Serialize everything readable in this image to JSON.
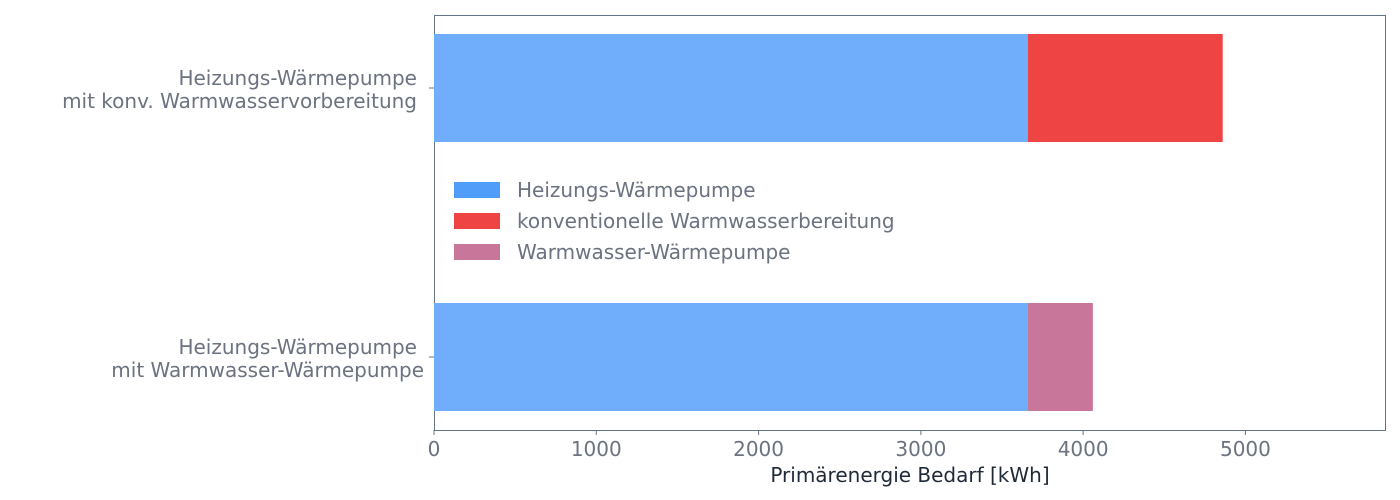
{
  "chart_data": {
    "type": "bar",
    "orientation": "horizontal",
    "stacked": true,
    "categories": [
      [
        "Heizungs-Wärmepumpe",
        "mit konv. Warmwasservorbereitung"
      ],
      [
        "Heizungs-Wärmepumpe",
        "mit Warmwasser-Wärmepumpe"
      ]
    ],
    "series": [
      {
        "name": "Heizungs-Wärmepumpe",
        "color": "#70aefc",
        "legend_color": "#4f9cf9",
        "values": [
          3660,
          3660
        ]
      },
      {
        "name": "konventionelle Warmwasserbereitung",
        "color": "#ef4444",
        "legend_color": "#ef4444",
        "values": [
          1200,
          0
        ]
      },
      {
        "name": "Warmwasser-Wärmepumpe",
        "color": "#c9769b",
        "legend_color": "#c9769b",
        "values": [
          0,
          400
        ]
      }
    ],
    "xlabel": "Primärenergie Bedarf [kWh]",
    "ylabel": "",
    "xlim": [
      0,
      5860
    ],
    "xticks": [
      0,
      1000,
      2000,
      3000,
      4000,
      5000
    ],
    "grid": false,
    "legend_position": "center-left"
  }
}
